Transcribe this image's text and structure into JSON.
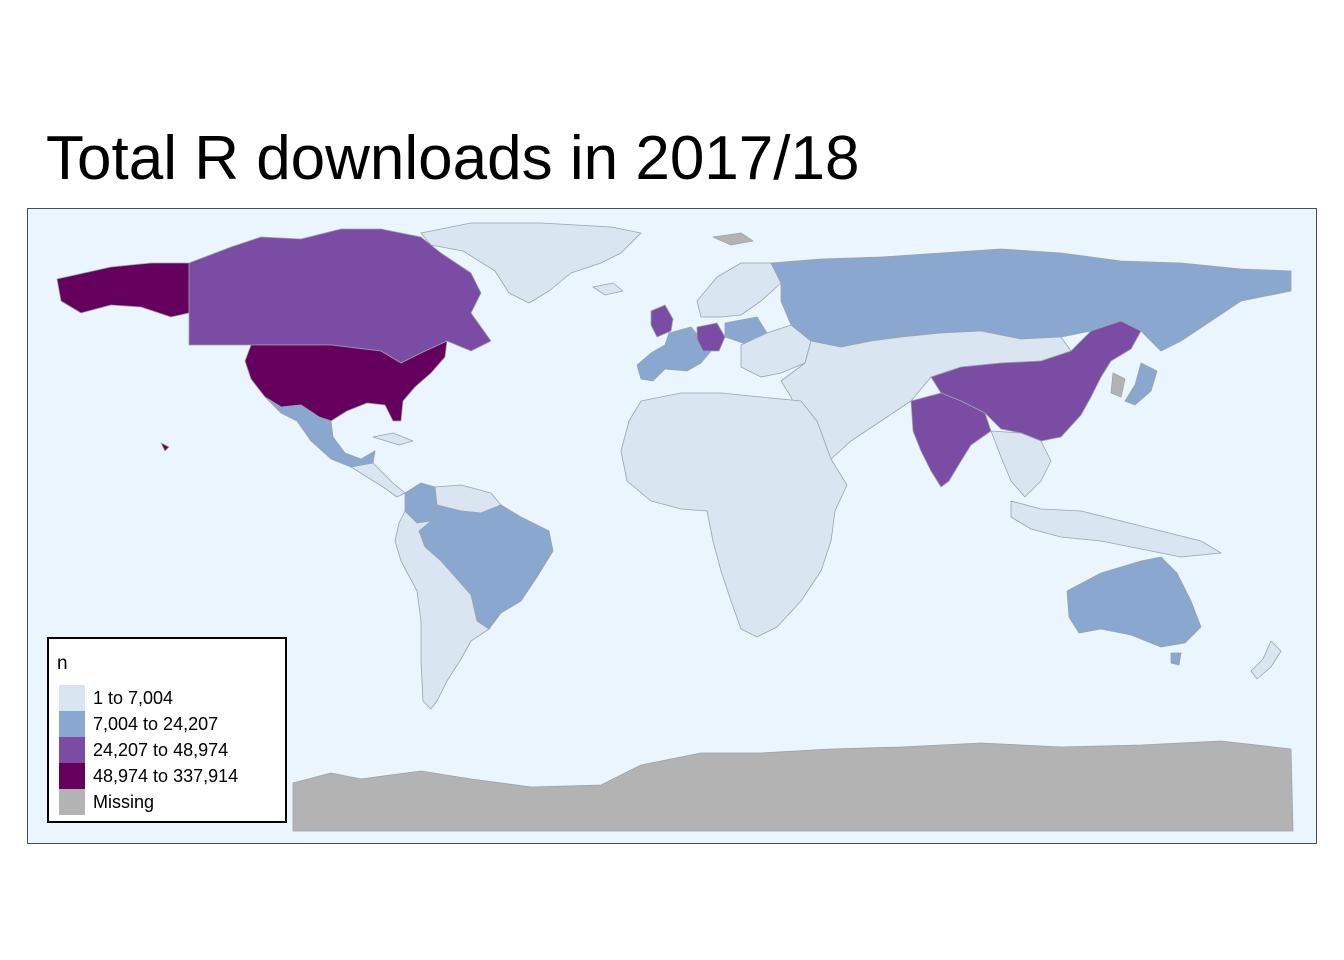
{
  "title": "Total R downloads in 2017/18",
  "legend": {
    "title": "n",
    "items": [
      {
        "label": "1 to 7,004",
        "color": "#d9e5f0"
      },
      {
        "label": "7,004 to 24,207",
        "color": "#8aa7cf"
      },
      {
        "label": "24,207 to 48,974",
        "color": "#7a4ca3"
      },
      {
        "label": "48,974 to 337,914",
        "color": "#65005f"
      },
      {
        "label": "Missing",
        "color": "#b3b3b3"
      }
    ]
  },
  "colors": {
    "ocean": "#ebf5fe",
    "border": "#9aa3ad"
  }
}
